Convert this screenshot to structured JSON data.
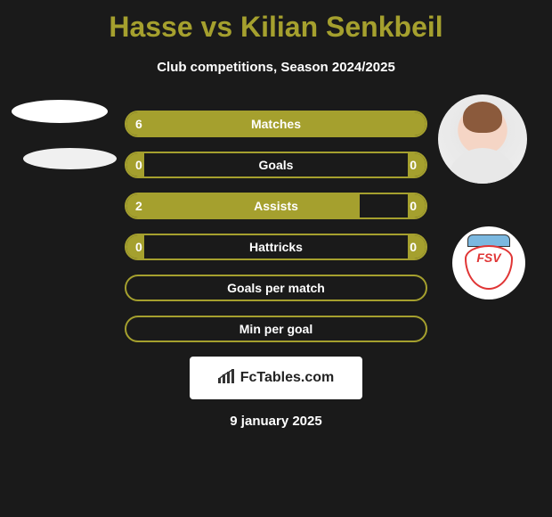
{
  "header": {
    "title": "Hasse vs Kilian Senkbeil",
    "subtitle": "Club competitions, Season 2024/2025"
  },
  "colors": {
    "background": "#1a1a1a",
    "accent": "#a5a02e",
    "text_white": "#ffffff",
    "watermark_bg": "#ffffff",
    "logo_red": "#e03535",
    "logo_blue": "#7bb8e0"
  },
  "stats": [
    {
      "label": "Matches",
      "left_value": "6",
      "right_value": "",
      "left_width_pct": 100,
      "right_width_pct": 0
    },
    {
      "label": "Goals",
      "left_value": "0",
      "right_value": "0",
      "left_width_pct": 6,
      "right_width_pct": 6
    },
    {
      "label": "Assists",
      "left_value": "2",
      "right_value": "0",
      "left_width_pct": 78,
      "right_width_pct": 6
    },
    {
      "label": "Hattricks",
      "left_value": "0",
      "right_value": "0",
      "left_width_pct": 6,
      "right_width_pct": 6
    },
    {
      "label": "Goals per match",
      "left_value": "",
      "right_value": "",
      "left_width_pct": 0,
      "right_width_pct": 0
    },
    {
      "label": "Min per goal",
      "left_value": "",
      "right_value": "",
      "left_width_pct": 0,
      "right_width_pct": 0
    }
  ],
  "watermark": {
    "text": "FcTables.com"
  },
  "footer": {
    "date": "9 january 2025"
  },
  "team_logo": {
    "text": "FSV"
  }
}
